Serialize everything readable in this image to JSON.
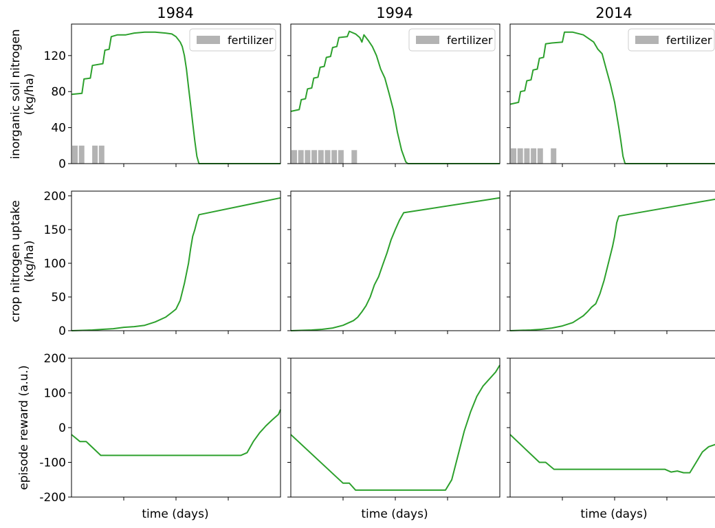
{
  "chart_data": {
    "type": "line",
    "layout": "3 rows x 3 columns small multiples, shared y axis per row",
    "columns": [
      "1984",
      "1994",
      "2014"
    ],
    "xlabel": "time (days)",
    "x_ticks_labeled": false,
    "legend": {
      "label": "fertilizer",
      "location": "top-right",
      "panels": "row 1 only"
    },
    "colors": {
      "line": "#2ca02c",
      "fertilizer": "#b3b3b3"
    },
    "rows": [
      {
        "ylabel_line1": "inorganic soil nitrogen",
        "ylabel_line2": "(kg/ha)",
        "ylim": [
          0,
          155
        ],
        "yticks": [
          0,
          40,
          80,
          120
        ],
        "panels": [
          {
            "year": "1984",
            "fertilizer_bar_height": 20,
            "fertilizer_slots": [
              0,
              1,
              3,
              4
            ],
            "series": [
              [
                0,
                77
              ],
              [
                5,
                78
              ],
              [
                6,
                94
              ],
              [
                9,
                95
              ],
              [
                10,
                109
              ],
              [
                15,
                111
              ],
              [
                16,
                126
              ],
              [
                18,
                127
              ],
              [
                19,
                141
              ],
              [
                22,
                143
              ],
              [
                26,
                143
              ],
              [
                30,
                145
              ],
              [
                35,
                146
              ],
              [
                40,
                146
              ],
              [
                45,
                145
              ],
              [
                48,
                144
              ],
              [
                50,
                141
              ],
              [
                52,
                135
              ],
              [
                53,
                130
              ],
              [
                54,
                120
              ],
              [
                55,
                105
              ],
              [
                56,
                85
              ],
              [
                57,
                65
              ],
              [
                58,
                45
              ],
              [
                59,
                25
              ],
              [
                60,
                8
              ],
              [
                61,
                0
              ],
              [
                100,
                0
              ]
            ]
          },
          {
            "year": "1994",
            "fertilizer_bar_height": 15,
            "fertilizer_slots": [
              0,
              1,
              2,
              3,
              4,
              5,
              6,
              7,
              9
            ],
            "series": [
              [
                0,
                58
              ],
              [
                4,
                60
              ],
              [
                5,
                71
              ],
              [
                7,
                72
              ],
              [
                8,
                83
              ],
              [
                10,
                84
              ],
              [
                11,
                95
              ],
              [
                13,
                96
              ],
              [
                14,
                107
              ],
              [
                16,
                108
              ],
              [
                17,
                118
              ],
              [
                19,
                119
              ],
              [
                20,
                129
              ],
              [
                22,
                130
              ],
              [
                23,
                140
              ],
              [
                27,
                141
              ],
              [
                28,
                147
              ],
              [
                31,
                144
              ],
              [
                33,
                140
              ],
              [
                34,
                135
              ],
              [
                35,
                143
              ],
              [
                37,
                137
              ],
              [
                39,
                130
              ],
              [
                41,
                120
              ],
              [
                43,
                105
              ],
              [
                45,
                95
              ],
              [
                47,
                78
              ],
              [
                49,
                60
              ],
              [
                51,
                35
              ],
              [
                53,
                15
              ],
              [
                55,
                2
              ],
              [
                56,
                0
              ],
              [
                100,
                0
              ]
            ]
          },
          {
            "year": "2014",
            "fertilizer_bar_height": 17,
            "fertilizer_slots": [
              0,
              1,
              2,
              3,
              4,
              6
            ],
            "series": [
              [
                0,
                66
              ],
              [
                4,
                68
              ],
              [
                5,
                80
              ],
              [
                7,
                81
              ],
              [
                8,
                92
              ],
              [
                10,
                93
              ],
              [
                11,
                104
              ],
              [
                13,
                105
              ],
              [
                14,
                117
              ],
              [
                16,
                118
              ],
              [
                17,
                133
              ],
              [
                20,
                134
              ],
              [
                25,
                135
              ],
              [
                26,
                146
              ],
              [
                30,
                146
              ],
              [
                35,
                143
              ],
              [
                40,
                135
              ],
              [
                42,
                127
              ],
              [
                44,
                122
              ],
              [
                46,
                105
              ],
              [
                48,
                88
              ],
              [
                50,
                68
              ],
              [
                52,
                40
              ],
              [
                53,
                25
              ],
              [
                54,
                8
              ],
              [
                55,
                0
              ],
              [
                100,
                0
              ]
            ]
          }
        ]
      },
      {
        "ylabel_line1": "crop nitrogen uptake",
        "ylabel_line2": "(kg/ha)",
        "ylim": [
          0,
          207
        ],
        "yticks": [
          0,
          50,
          100,
          150,
          200
        ],
        "panels": [
          {
            "year": "1984",
            "series": [
              [
                0,
                0
              ],
              [
                10,
                1
              ],
              [
                15,
                2
              ],
              [
                20,
                3
              ],
              [
                25,
                5
              ],
              [
                30,
                6
              ],
              [
                35,
                8
              ],
              [
                40,
                13
              ],
              [
                45,
                20
              ],
              [
                48,
                27
              ],
              [
                50,
                32
              ],
              [
                52,
                45
              ],
              [
                54,
                70
              ],
              [
                56,
                100
              ],
              [
                57,
                122
              ],
              [
                58,
                140
              ],
              [
                59,
                150
              ],
              [
                60,
                162
              ],
              [
                61,
                172
              ],
              [
                100,
                197
              ]
            ]
          },
          {
            "year": "1994",
            "series": [
              [
                0,
                0
              ],
              [
                10,
                1
              ],
              [
                15,
                2
              ],
              [
                20,
                4
              ],
              [
                25,
                8
              ],
              [
                30,
                15
              ],
              [
                32,
                20
              ],
              [
                34,
                28
              ],
              [
                36,
                37
              ],
              [
                38,
                50
              ],
              [
                40,
                68
              ],
              [
                42,
                80
              ],
              [
                44,
                98
              ],
              [
                46,
                115
              ],
              [
                48,
                135
              ],
              [
                50,
                150
              ],
              [
                52,
                164
              ],
              [
                54,
                175
              ],
              [
                100,
                197
              ]
            ]
          },
          {
            "year": "2014",
            "series": [
              [
                0,
                0
              ],
              [
                10,
                1
              ],
              [
                15,
                2
              ],
              [
                20,
                4
              ],
              [
                25,
                7
              ],
              [
                30,
                12
              ],
              [
                33,
                18
              ],
              [
                35,
                22
              ],
              [
                37,
                28
              ],
              [
                39,
                35
              ],
              [
                41,
                40
              ],
              [
                43,
                55
              ],
              [
                45,
                75
              ],
              [
                47,
                100
              ],
              [
                49,
                125
              ],
              [
                50,
                140
              ],
              [
                51,
                160
              ],
              [
                52,
                170
              ],
              [
                100,
                196
              ]
            ]
          }
        ]
      },
      {
        "ylabel": "episode reward (a.u.)",
        "ylim": [
          -200,
          200
        ],
        "yticks": [
          -200,
          -100,
          0,
          100,
          200
        ],
        "yticklabels": [
          "-200",
          "-100",
          "0",
          "100",
          "200"
        ],
        "panels": [
          {
            "year": "1984",
            "series": [
              [
                0,
                -20
              ],
              [
                4,
                -40
              ],
              [
                7,
                -40
              ],
              [
                14,
                -80
              ],
              [
                20,
                -80
              ],
              [
                30,
                -80
              ],
              [
                40,
                -80
              ],
              [
                50,
                -80
              ],
              [
                60,
                -80
              ],
              [
                70,
                -80
              ],
              [
                81,
                -80
              ],
              [
                84,
                -72
              ],
              [
                87,
                -40
              ],
              [
                90,
                -15
              ],
              [
                93,
                5
              ],
              [
                96,
                22
              ],
              [
                99,
                38
              ],
              [
                100,
                52
              ]
            ]
          },
          {
            "year": "1994",
            "series": [
              [
                0,
                -20
              ],
              [
                25,
                -160
              ],
              [
                28,
                -160
              ],
              [
                31,
                -180
              ],
              [
                40,
                -180
              ],
              [
                50,
                -180
              ],
              [
                60,
                -180
              ],
              [
                74,
                -180
              ],
              [
                77,
                -150
              ],
              [
                80,
                -80
              ],
              [
                83,
                -10
              ],
              [
                86,
                45
              ],
              [
                89,
                90
              ],
              [
                92,
                120
              ],
              [
                95,
                140
              ],
              [
                98,
                160
              ],
              [
                100,
                180
              ]
            ]
          },
          {
            "year": "2014",
            "series": [
              [
                0,
                -20
              ],
              [
                14,
                -100
              ],
              [
                17,
                -100
              ],
              [
                21,
                -120
              ],
              [
                30,
                -120
              ],
              [
                40,
                -120
              ],
              [
                50,
                -120
              ],
              [
                60,
                -120
              ],
              [
                74,
                -120
              ],
              [
                77,
                -128
              ],
              [
                80,
                -125
              ],
              [
                83,
                -130
              ],
              [
                86,
                -130
              ],
              [
                89,
                -100
              ],
              [
                92,
                -70
              ],
              [
                95,
                -55
              ],
              [
                100,
                -45
              ]
            ]
          }
        ]
      }
    ]
  }
}
